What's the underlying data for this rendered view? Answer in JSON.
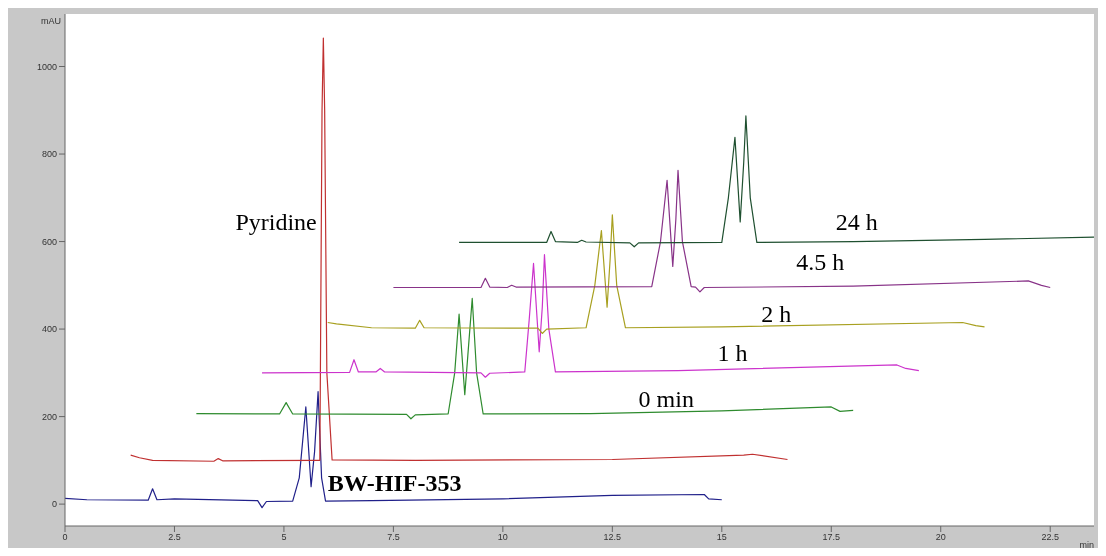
{
  "chart_data": {
    "type": "line",
    "ylabel": "mAU",
    "xlabel": "min",
    "xlim": [
      0,
      23.5
    ],
    "ylim": [
      -50,
      1120
    ],
    "xticks": [
      0,
      2.5,
      5,
      7.5,
      10,
      12.5,
      15,
      17.5,
      20,
      22.5
    ],
    "yticks": [
      0,
      200,
      400,
      600,
      800,
      1000
    ],
    "grid": false,
    "legend": false,
    "marker": "none",
    "line_style": "solid",
    "series": [
      {
        "name": "BW-HIF-353",
        "color": "#20208a",
        "x": [
          0,
          0.5,
          1.9,
          2.0,
          2.1,
          2.5,
          4.4,
          4.5,
          4.6,
          5.2,
          5.35,
          5.5,
          5.62,
          5.7,
          5.78,
          5.86,
          5.95,
          7,
          10,
          12.5,
          14.6,
          14.7,
          15
        ],
        "values": [
          13,
          10,
          9,
          35,
          10,
          12,
          8,
          -8,
          6,
          7,
          60,
          222,
          40,
          120,
          257,
          60,
          7,
          8,
          12,
          20,
          22,
          12,
          10
        ]
      },
      {
        "name": "Pyridine",
        "color": "#c03030",
        "x": [
          1.5,
          1.7,
          2,
          3.4,
          3.5,
          3.6,
          5.7,
          5.82,
          5.87,
          5.9,
          5.93,
          5.98,
          6.1,
          8,
          12.5,
          15.5,
          15.7,
          16.5
        ],
        "values": [
          112,
          106,
          100,
          98,
          104,
          99,
          100,
          100,
          900,
          1065,
          900,
          300,
          101,
          100,
          102,
          112,
          114,
          102
        ]
      },
      {
        "name": "0 min",
        "color": "#2e8b2e",
        "x": [
          3,
          4.9,
          5.05,
          5.2,
          7.8,
          7.9,
          8.0,
          8.75,
          8.9,
          9.0,
          9.13,
          9.2,
          9.3,
          9.4,
          9.55,
          12,
          15,
          17.5,
          17.7,
          18
        ],
        "values": [
          207,
          206,
          232,
          206,
          205,
          195,
          204,
          206,
          300,
          434,
          250,
          340,
          470,
          300,
          206,
          207,
          213,
          222,
          212,
          214
        ]
      },
      {
        "name": "1 h",
        "color": "#cc33cc",
        "x": [
          4.5,
          6.5,
          6.6,
          6.7,
          7.1,
          7.2,
          7.3,
          9.5,
          9.6,
          9.7,
          10.5,
          10.6,
          10.7,
          10.83,
          10.9,
          10.95,
          11.05,
          11.2,
          14,
          19,
          19.2,
          19.5
        ],
        "values": [
          300,
          301,
          330,
          302,
          302,
          310,
          302,
          300,
          290,
          299,
          302,
          420,
          550,
          348,
          450,
          570,
          400,
          302,
          305,
          318,
          310,
          305
        ]
      },
      {
        "name": "2 h",
        "color": "#a8a020",
        "x": [
          6,
          6.2,
          7,
          8.0,
          8.1,
          8.2,
          10.8,
          10.9,
          11,
          11.9,
          12.1,
          12.25,
          12.38,
          12.45,
          12.5,
          12.6,
          12.8,
          15,
          20.5,
          20.8,
          21
        ],
        "values": [
          415,
          412,
          403,
          402,
          420,
          403,
          402,
          390,
          400,
          403,
          500,
          625,
          450,
          560,
          661,
          500,
          403,
          405,
          415,
          408,
          405
        ]
      },
      {
        "name": "4.5 h",
        "color": "#883388",
        "x": [
          7.5,
          9.5,
          9.6,
          9.7,
          10.1,
          10.2,
          10.3,
          13.4,
          13.6,
          13.75,
          13.88,
          13.95,
          14.0,
          14.1,
          14.3,
          14.4,
          14.5,
          14.6,
          18,
          22,
          22.3,
          22.5
        ],
        "values": [
          495,
          495,
          516,
          496,
          495,
          500,
          496,
          497,
          600,
          740,
          543,
          650,
          763,
          600,
          497,
          496,
          485,
          495,
          498,
          510,
          500,
          495
        ]
      },
      {
        "name": "24 h",
        "color": "#1f5030",
        "x": [
          9,
          11,
          11.1,
          11.2,
          11.7,
          11.8,
          11.9,
          12.9,
          13.0,
          13.1,
          15.0,
          15.15,
          15.3,
          15.42,
          15.5,
          15.55,
          15.65,
          15.8,
          18,
          21,
          23.5
        ],
        "values": [
          598,
          598,
          623,
          600,
          598,
          603,
          599,
          597,
          588,
          597,
          598,
          700,
          838,
          645,
          780,
          887,
          700,
          598,
          600,
          605,
          610
        ]
      }
    ]
  }
}
